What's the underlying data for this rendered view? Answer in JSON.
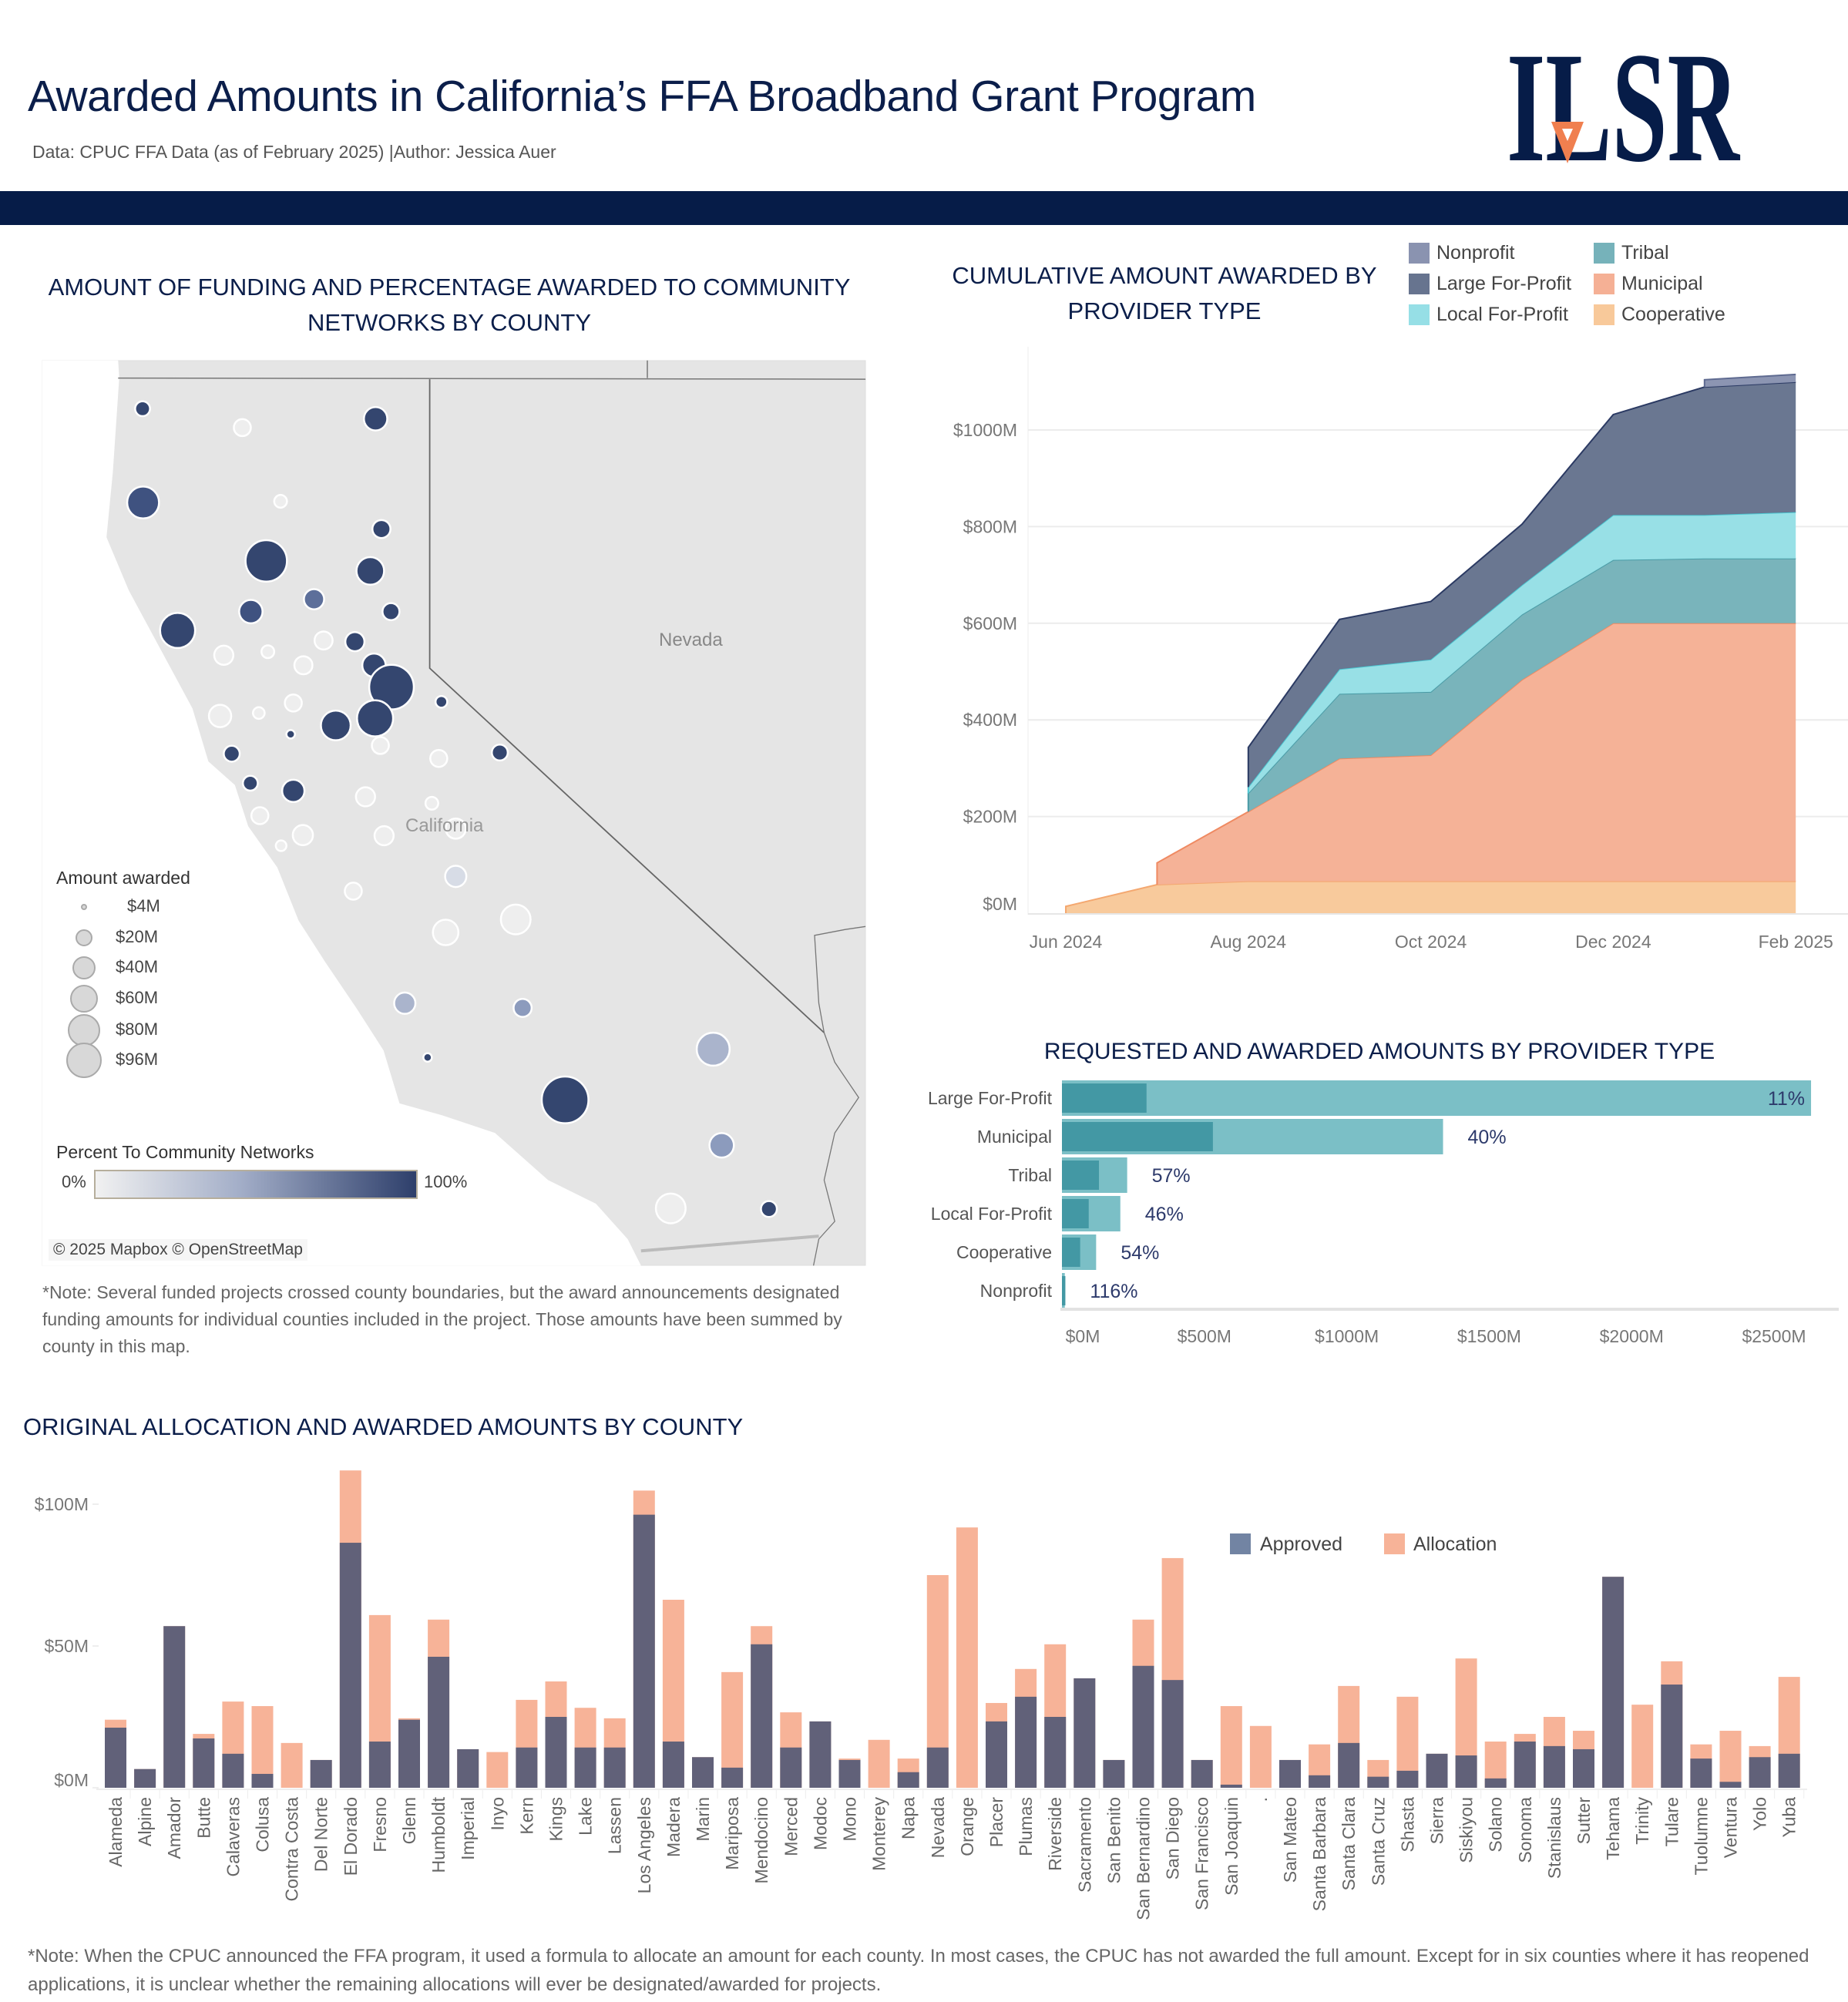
{
  "header": {
    "title": "Awarded Amounts in California’s FFA Broadband Grant Program",
    "subtitle": "Data: CPUC FFA Data (as of February 2025) |Author: Jessica Auer",
    "logo_text": "ILSR"
  },
  "colors": {
    "navy": "#061c48",
    "approved": "#616179",
    "approved_legend": "#7284a3",
    "allocation": "#f7b398",
    "requested_bar": "#7bbfc6",
    "awarded_bar": "#4398a4",
    "percent_text": "#2d3a6b"
  },
  "map": {
    "title_lines": [
      "AMOUNT OF FUNDING AND PERCENTAGE AWARDED TO COMMUNITY",
      "NETWORKS BY COUNTY"
    ],
    "labels": {
      "nevada": "Nevada",
      "california": "California"
    },
    "size_legend": {
      "title": "Amount awarded",
      "items": [
        "$4M",
        "$20M",
        "$40M",
        "$60M",
        "$80M",
        "$96M"
      ]
    },
    "color_legend": {
      "title": "Percent To Community Networks",
      "min": "0%",
      "max": "100%",
      "low_color": "#f1f1f1",
      "high_color": "#2e3f6b"
    },
    "attribution": "© 2025 Mapbox © OpenStreetMap",
    "note": "*Note: Several funded projects crossed county boundaries, but the award announcements designated funding amounts for individual counties included in the project. Those amounts have been summed by county in this map."
  },
  "chart_data": [
    {
      "type": "area",
      "title": "CUMULATIVE AMOUNT AWARDED BY PROVIDER TYPE",
      "stacked": true,
      "x": [
        "Jun 2024",
        "Jul 2024",
        "Aug 2024",
        "Sep 2024",
        "Oct 2024",
        "Nov 2024",
        "Dec 2024",
        "Jan 2025",
        "Feb 2025"
      ],
      "x_ticks": [
        "Jun 2024",
        "Aug 2024",
        "Oct 2024",
        "Dec 2024",
        "Feb 2025"
      ],
      "y_ticks": [
        "$0M",
        "$200M",
        "$400M",
        "$600M",
        "$800M",
        "$1000M"
      ],
      "ylim": [
        0,
        1150
      ],
      "grid": true,
      "legend": "top-right",
      "legend_order": [
        "Nonprofit",
        "Tribal",
        "Large For-Profit",
        "Municipal",
        "Local For-Profit",
        "Cooperative"
      ],
      "series": [
        {
          "name": "Cooperative",
          "color": "#f8c99a",
          "line": "#f4a870",
          "values": [
            14,
            59,
            66,
            66,
            66,
            66,
            66,
            66,
            66
          ]
        },
        {
          "name": "Municipal",
          "color": "#f5b095",
          "line": "#ef8a62",
          "values": [
            null,
            45,
            144,
            254,
            261,
            417,
            534,
            534,
            534
          ]
        },
        {
          "name": "Tribal",
          "color": "#76b2ba",
          "line": "#4a9ba6",
          "values": [
            null,
            null,
            38,
            134,
            131,
            135,
            131,
            134,
            134
          ]
        },
        {
          "name": "Local For-Profit",
          "color": "#96dfe6",
          "line": "#4cc7d2",
          "values": [
            null,
            null,
            13,
            51,
            67,
            61,
            93,
            90,
            96
          ]
        },
        {
          "name": "Large For-Profit",
          "color": "#67748f",
          "line": "#2b3a63",
          "values": [
            null,
            null,
            82,
            103,
            120,
            126,
            208,
            265,
            269
          ]
        },
        {
          "name": "Nonprofit",
          "color": "#8a93b0",
          "line": "#5e6a90",
          "values": [
            null,
            null,
            null,
            null,
            null,
            null,
            null,
            15,
            16
          ]
        }
      ]
    },
    {
      "type": "bar",
      "orientation": "horizontal",
      "title": "REQUESTED AND AWARDED AMOUNTS BY PROVIDER TYPE",
      "categories": [
        "Large For-Profit",
        "Municipal",
        "Tribal",
        "Local For-Profit",
        "Cooperative",
        "Nonprofit"
      ],
      "requested": [
        2630,
        1338,
        229,
        205,
        120,
        10
      ],
      "awarded": [
        297,
        530,
        130,
        94,
        64,
        12
      ],
      "percent_labels": [
        "11%",
        "40%",
        "57%",
        "46%",
        "54%",
        "116%"
      ],
      "x_ticks": [
        "$0M",
        "$500M",
        "$1000M",
        "$1500M",
        "$2000M",
        "$2500M"
      ],
      "xlim": [
        0,
        2500
      ]
    },
    {
      "type": "bar",
      "title": "ORIGINAL ALLOCATION AND AWARDED AMOUNTS BY COUNTY",
      "legend": "top-right",
      "series_names": [
        "Approved",
        "Allocation"
      ],
      "y_ticks": [
        "$0M",
        "$50M",
        "$100M"
      ],
      "ylim": [
        0,
        112
      ],
      "categories": [
        "Alameda",
        "Alpine",
        "Amador",
        "Butte",
        "Calaveras",
        "Colusa",
        "Contra Costa",
        "Del Norte",
        "El Dorado",
        "Fresno",
        "Glenn",
        "Humboldt",
        "Imperial",
        "Inyo",
        "Kern",
        "Kings",
        "Lake",
        "Lassen",
        "Los Angeles",
        "Madera",
        "Marin",
        "Mariposa",
        "Mendocino",
        "Merced",
        "Modoc",
        "Mono",
        "Monterey",
        "Napa",
        "Nevada",
        "Orange",
        "Placer",
        "Plumas",
        "Riverside",
        "Sacramento",
        "San Benito",
        "San Bernardino",
        "San Diego",
        "San Francisco",
        "San Joaquin",
        ".",
        "San Mateo",
        "Santa Barbara",
        "Santa Clara",
        "Santa Cruz",
        "Shasta",
        "Sierra",
        "Siskiyou",
        "Solano",
        "Sonoma",
        "Stanislaus",
        "Sutter",
        "Tehama",
        "Trinity",
        "Tulare",
        "Tuolumne",
        "Ventura",
        "Yolo",
        "Yuba"
      ],
      "approved": [
        21.2,
        6.6,
        57.0,
        17.4,
        12.0,
        4.9,
        0,
        9.8,
        86.4,
        16.3,
        24.0,
        46.2,
        13.6,
        0,
        14.2,
        25.0,
        14.2,
        14.2,
        96.3,
        16.3,
        10.8,
        7.1,
        50.6,
        14.2,
        23.4,
        9.8,
        0,
        5.5,
        14.2,
        0,
        23.4,
        32.1,
        25.0,
        38.6,
        9.8,
        43.0,
        38.0,
        9.8,
        1.1,
        0,
        9.8,
        4.4,
        15.8,
        3.9,
        6.0,
        12.0,
        11.4,
        3.3,
        16.3,
        14.7,
        13.6,
        74.4,
        0,
        36.4,
        10.3,
        2.1,
        10.8,
        12.0
      ],
      "allocation": [
        24.0,
        6.6,
        57.0,
        19.0,
        30.4,
        28.8,
        15.8,
        9.8,
        111.9,
        60.9,
        24.5,
        59.3,
        13.6,
        12.6,
        31.0,
        37.5,
        28.2,
        24.5,
        104.8,
        66.3,
        10.8,
        40.8,
        57.0,
        26.6,
        23.4,
        10.3,
        16.9,
        10.3,
        75.0,
        91.8,
        29.9,
        41.9,
        50.6,
        38.6,
        9.8,
        59.3,
        81.0,
        9.8,
        28.8,
        21.8,
        9.8,
        15.3,
        35.9,
        9.8,
        32.1,
        12.0,
        45.6,
        16.3,
        19.0,
        25.0,
        20.1,
        74.4,
        29.3,
        44.6,
        15.3,
        20.1,
        14.7,
        39.1
      ],
      "note": "*Note: When the CPUC announced the FFA program, it used a formula to allocate an amount for each county. In most cases, the CPUC has not awarded the full amount. Except for in six counties where it has reopened applications, it is unclear whether the remaining allocations will ever be designated/awarded for projects."
    }
  ]
}
